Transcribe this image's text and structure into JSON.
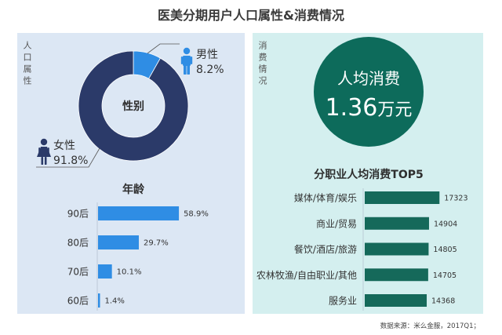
{
  "title": "医美分期用户人口属性&消费情况",
  "demographics": {
    "side_label": "人口属性"
  },
  "spending": {
    "side_label": "消费情况",
    "avg_spend": {
      "label": "人均消费",
      "value": "1.36",
      "unit": "万元"
    }
  },
  "source": "数据来源：米么金服，2017Q1；",
  "icons": {
    "male": "male-person-icon",
    "female": "female-person-icon"
  },
  "colors": {
    "demographics_bg": "#dce7f4",
    "spending_bg": "#d4efef",
    "male": "#2f8de4",
    "female": "#2b3a69",
    "age_bar": "#2f8de4",
    "spend_circle": "#0d6b5b",
    "occupation_bar": "#15695a",
    "axis": "#a9b8c6",
    "leader_line": "#555555"
  },
  "chart_data": [
    {
      "type": "pie",
      "title": "性别",
      "categories": [
        "男性",
        "女性"
      ],
      "values": [
        8.2,
        91.8
      ],
      "labels": [
        "8.2%",
        "91.8%"
      ]
    },
    {
      "type": "bar",
      "orientation": "horizontal",
      "title": "年龄",
      "categories": [
        "90后",
        "80后",
        "70后",
        "60后"
      ],
      "values": [
        58.9,
        29.7,
        10.1,
        1.4
      ],
      "labels": [
        "58.9%",
        "29.7%",
        "10.1%",
        "1.4%"
      ]
    },
    {
      "type": "bar",
      "orientation": "horizontal",
      "title": "分职业人均消费TOP5",
      "categories": [
        "媒体/体育/娱乐",
        "商业/贸易",
        "餐饮/酒店/旅游",
        "农林牧渔/自由职业/其他",
        "服务业"
      ],
      "values": [
        17323,
        14904,
        14805,
        14705,
        14368
      ]
    }
  ]
}
